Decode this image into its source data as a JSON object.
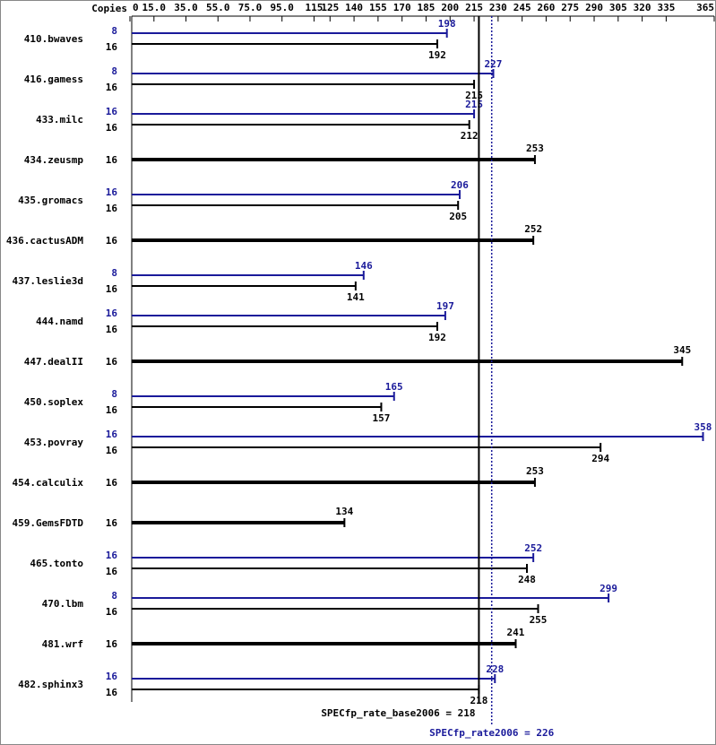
{
  "chart_data": {
    "type": "spec-bar",
    "copies_header": "Copies",
    "categories": [
      "410.bwaves",
      "416.gamess",
      "433.milc",
      "434.zeusmp",
      "435.gromacs",
      "436.cactusADM",
      "437.leslie3d",
      "444.namd",
      "447.dealII",
      "450.soplex",
      "453.povray",
      "454.calculix",
      "459.GemsFDTD",
      "465.tonto",
      "470.lbm",
      "481.wrf",
      "482.sphinx3"
    ],
    "series": [
      {
        "name": "base",
        "color": "#000000",
        "copies": [
          16,
          16,
          16,
          16,
          16,
          16,
          16,
          16,
          16,
          16,
          16,
          16,
          16,
          16,
          16,
          16,
          16
        ],
        "values": [
          192,
          215,
          212,
          253,
          205,
          252,
          141,
          192,
          345,
          157,
          294,
          253,
          134,
          248,
          255,
          241,
          218
        ]
      },
      {
        "name": "peak",
        "color": "#1a1a9a",
        "copies": [
          8,
          8,
          16,
          null,
          16,
          null,
          8,
          16,
          null,
          8,
          16,
          null,
          null,
          16,
          8,
          null,
          16
        ],
        "values": [
          198,
          227,
          215,
          null,
          206,
          null,
          146,
          197,
          null,
          165,
          358,
          null,
          null,
          252,
          299,
          null,
          228
        ]
      }
    ],
    "xlim": [
      0,
      365
    ],
    "xticks": [
      0,
      {
        "value": 15,
        "label": "15.0"
      },
      {
        "value": 35,
        "label": "35.0"
      },
      {
        "value": 55,
        "label": "55.0"
      },
      {
        "value": 75,
        "label": "75.0"
      },
      {
        "value": 95,
        "label": "95.0"
      },
      115,
      125,
      140,
      155,
      170,
      185,
      200,
      215,
      230,
      245,
      260,
      275,
      290,
      305,
      320,
      335,
      365
    ],
    "reference_lines": [
      {
        "label": "SPECfp_rate_base2006 = 218",
        "value": 218,
        "color": "#000000",
        "style": "solid"
      },
      {
        "label": "SPECfp_rate2006 = 226",
        "value": 226,
        "color": "#1a1a9a",
        "style": "dotted"
      }
    ]
  }
}
